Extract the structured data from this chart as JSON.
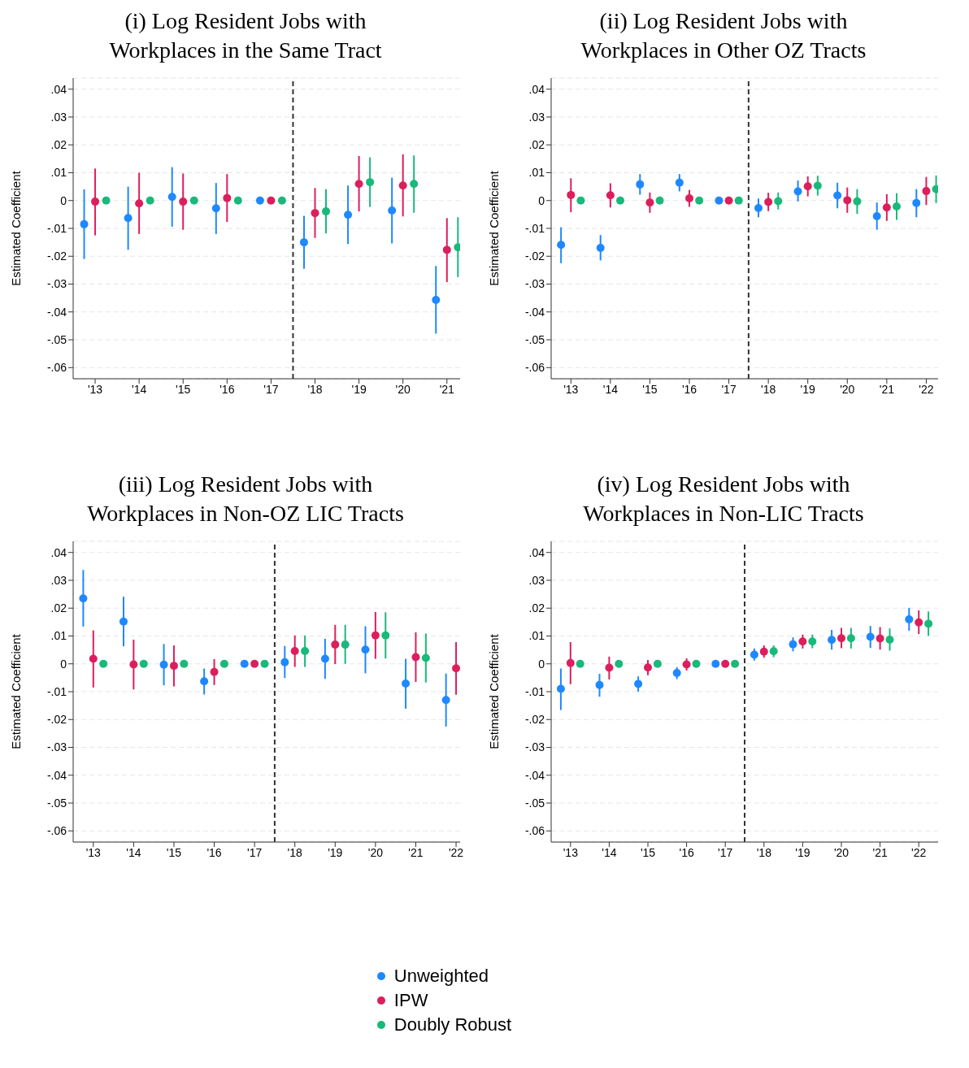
{
  "chart_data": [
    {
      "type": "scatter",
      "title": "(i) Log Resident Jobs with\nWorkplaces in the Same Tract",
      "ylabel": "Estimated Coefficient",
      "marker": "circle",
      "grid": "y",
      "legend": "bottom",
      "xlim": [
        2012.5,
        2021.3
      ],
      "xticks": [
        {
          "value": 2013,
          "label": "'13"
        },
        {
          "value": 2014,
          "label": "'14"
        },
        {
          "value": 2015,
          "label": "'15"
        },
        {
          "value": 2016,
          "label": "'16"
        },
        {
          "value": 2017,
          "label": "'17"
        },
        {
          "value": 2018,
          "label": "'18"
        },
        {
          "value": 2019,
          "label": "'19"
        },
        {
          "value": 2020,
          "label": "'20"
        },
        {
          "value": 2021,
          "label": "'21"
        }
      ],
      "ylim": [
        -0.064,
        0.044
      ],
      "yticks": [
        {
          "value": -0.06,
          "label": "-.06"
        },
        {
          "value": -0.05,
          "label": "-.05"
        },
        {
          "value": -0.04,
          "label": "-.04"
        },
        {
          "value": -0.03,
          "label": "-.03"
        },
        {
          "value": -0.02,
          "label": "-.02"
        },
        {
          "value": -0.01,
          "label": "-.01"
        },
        {
          "value": 0,
          "label": "0"
        },
        {
          "value": 0.01,
          "label": ".01"
        },
        {
          "value": 0.02,
          "label": ".02"
        },
        {
          "value": 0.03,
          "label": ".03"
        },
        {
          "value": 0.04,
          "label": ".04"
        }
      ],
      "ref_lines": [
        {
          "axis": "x",
          "value": 2017.5,
          "color": "#333333",
          "line_style": "dashed"
        }
      ],
      "series": [
        {
          "name": "Unweighted",
          "color": "#1e88ff",
          "x": [
            2012.75,
            2013.75,
            2014.75,
            2015.75,
            2016.75,
            2017.75,
            2018.75,
            2019.75,
            2020.75
          ],
          "values": [
            -0.0085,
            -0.0063,
            0.0013,
            -0.0028,
            0,
            -0.015,
            -0.0051,
            -0.0036,
            -0.0357
          ],
          "errors": [
            [
              -0.021,
              0.004
            ],
            [
              -0.0177,
              0.005
            ],
            [
              -0.0094,
              0.012
            ],
            [
              -0.012,
              0.0063
            ],
            null,
            [
              -0.0245,
              -0.0055
            ],
            [
              -0.0156,
              0.0054
            ],
            [
              -0.0154,
              0.0082
            ],
            [
              -0.0478,
              -0.0235
            ]
          ]
        },
        {
          "name": "IPW",
          "color": "#dc1f5c",
          "x": [
            2013,
            2014,
            2015,
            2016,
            2017,
            2018,
            2019,
            2020,
            2021
          ],
          "values": [
            -0.0004,
            -0.001,
            -0.0004,
            0.0009,
            0,
            -0.0045,
            0.006,
            0.0054,
            -0.0177
          ],
          "errors": [
            [
              -0.0125,
              0.0115
            ],
            [
              -0.012,
              0.01
            ],
            [
              -0.0105,
              0.0097
            ],
            [
              -0.0077,
              0.0095
            ],
            null,
            [
              -0.0134,
              0.0045
            ],
            [
              -0.0039,
              0.016
            ],
            [
              -0.0057,
              0.0166
            ],
            [
              -0.0293,
              -0.0063
            ]
          ]
        },
        {
          "name": "Doubly Robust",
          "color": "#19b97a",
          "x": [
            2013.25,
            2014.25,
            2015.25,
            2016.25,
            2017.25,
            2018.25,
            2019.25,
            2020.25,
            2021.25
          ],
          "values": [
            0,
            0,
            0,
            0,
            0,
            -0.0039,
            0.0066,
            0.006,
            -0.0168
          ],
          "errors": [
            null,
            null,
            null,
            null,
            null,
            [
              -0.0118,
              0.0041
            ],
            [
              -0.0023,
              0.0155
            ],
            [
              -0.0044,
              0.0162
            ],
            [
              -0.0275,
              -0.006
            ]
          ]
        }
      ]
    },
    {
      "type": "scatter",
      "title": "(ii) Log Resident Jobs with\nWorkplaces in Other OZ Tracts",
      "ylabel": "Estimated Coefficient",
      "marker": "circle",
      "grid": "y",
      "xlim": [
        2012.5,
        2022.3
      ],
      "xticks": [
        {
          "value": 2013,
          "label": "'13"
        },
        {
          "value": 2014,
          "label": "'14"
        },
        {
          "value": 2015,
          "label": "'15"
        },
        {
          "value": 2016,
          "label": "'16"
        },
        {
          "value": 2017,
          "label": "'17"
        },
        {
          "value": 2018,
          "label": "'18"
        },
        {
          "value": 2019,
          "label": "'19"
        },
        {
          "value": 2020,
          "label": "'20"
        },
        {
          "value": 2021,
          "label": "'21"
        },
        {
          "value": 2022,
          "label": "'22"
        }
      ],
      "ylim": [
        -0.064,
        0.044
      ],
      "yticks": [
        {
          "value": -0.06,
          "label": "-.06"
        },
        {
          "value": -0.05,
          "label": "-.05"
        },
        {
          "value": -0.04,
          "label": "-.04"
        },
        {
          "value": -0.03,
          "label": "-.03"
        },
        {
          "value": -0.02,
          "label": "-.02"
        },
        {
          "value": -0.01,
          "label": "-.01"
        },
        {
          "value": 0,
          "label": "0"
        },
        {
          "value": 0.01,
          "label": ".01"
        },
        {
          "value": 0.02,
          "label": ".02"
        },
        {
          "value": 0.03,
          "label": ".03"
        },
        {
          "value": 0.04,
          "label": ".04"
        }
      ],
      "ref_lines": [
        {
          "axis": "x",
          "value": 2017.5,
          "color": "#333333",
          "line_style": "dashed"
        }
      ],
      "series": [
        {
          "color": "#1e88ff",
          "x": [
            2012.75,
            2013.75,
            2014.75,
            2015.75,
            2016.75,
            2017.75,
            2018.75,
            2019.75,
            2020.75,
            2021.75
          ],
          "values": [
            -0.0159,
            -0.017,
            0.0058,
            0.0064,
            0,
            -0.0027,
            0.0033,
            0.0018,
            -0.0056,
            -0.0009
          ],
          "errors": [
            [
              -0.0225,
              -0.0096
            ],
            [
              -0.0215,
              -0.0124
            ],
            [
              0.0021,
              0.0095
            ],
            [
              0.0033,
              0.0095
            ],
            null,
            [
              -0.006,
              0.0007
            ],
            [
              -0.0003,
              0.0072
            ],
            [
              -0.0028,
              0.0064
            ],
            [
              -0.0105,
              -0.0007
            ],
            [
              -0.006,
              0.0041
            ]
          ]
        },
        {
          "color": "#dc1f5c",
          "x": [
            2013,
            2014,
            2015,
            2016,
            2017,
            2018,
            2019,
            2020,
            2021,
            2022
          ],
          "values": [
            0.002,
            0.0019,
            -0.0007,
            0.0008,
            0,
            -0.0005,
            0.0051,
            0.0001,
            -0.0025,
            0.0034
          ],
          "errors": [
            [
              -0.0042,
              0.008
            ],
            [
              -0.0025,
              0.0062
            ],
            [
              -0.0044,
              0.0029
            ],
            [
              -0.0023,
              0.0038
            ],
            null,
            [
              -0.0038,
              0.0028
            ],
            [
              0.0015,
              0.0087
            ],
            [
              -0.0044,
              0.0047
            ],
            [
              -0.0073,
              0.0023
            ],
            [
              -0.0016,
              0.0085
            ]
          ]
        },
        {
          "color": "#19b97a",
          "x": [
            2013.25,
            2014.25,
            2015.25,
            2016.25,
            2017.25,
            2018.25,
            2019.25,
            2020.25,
            2021.25,
            2022.25
          ],
          "values": [
            0,
            0,
            0,
            0,
            0,
            -0.0002,
            0.0053,
            -0.0003,
            -0.0021,
            0.0041
          ],
          "errors": [
            null,
            null,
            null,
            null,
            null,
            [
              -0.0032,
              0.0029
            ],
            [
              0.0018,
              0.0089
            ],
            [
              -0.0048,
              0.0041
            ],
            [
              -0.0069,
              0.0026
            ],
            [
              -0.0009,
              0.009
            ]
          ]
        }
      ]
    },
    {
      "type": "scatter",
      "title": "(iii) Log Resident Jobs with\nWorkplaces in Non-OZ LIC Tracts",
      "ylabel": "Estimated Coefficient",
      "marker": "circle",
      "grid": "y",
      "xlim": [
        2012.5,
        2022.1
      ],
      "xticks": [
        {
          "value": 2013,
          "label": "'13"
        },
        {
          "value": 2014,
          "label": "'14"
        },
        {
          "value": 2015,
          "label": "'15"
        },
        {
          "value": 2016,
          "label": "'16"
        },
        {
          "value": 2017,
          "label": "'17"
        },
        {
          "value": 2018,
          "label": "'18"
        },
        {
          "value": 2019,
          "label": "'19"
        },
        {
          "value": 2020,
          "label": "'20"
        },
        {
          "value": 2021,
          "label": "'21"
        },
        {
          "value": 2022,
          "label": "'22"
        }
      ],
      "ylim": [
        -0.064,
        0.044
      ],
      "yticks": [
        {
          "value": -0.06,
          "label": "-.06"
        },
        {
          "value": -0.05,
          "label": "-.05"
        },
        {
          "value": -0.04,
          "label": "-.04"
        },
        {
          "value": -0.03,
          "label": "-.03"
        },
        {
          "value": -0.02,
          "label": "-.02"
        },
        {
          "value": -0.01,
          "label": "-.01"
        },
        {
          "value": 0,
          "label": "0"
        },
        {
          "value": 0.01,
          "label": ".01"
        },
        {
          "value": 0.02,
          "label": ".02"
        },
        {
          "value": 0.03,
          "label": ".03"
        },
        {
          "value": 0.04,
          "label": ".04"
        }
      ],
      "ref_lines": [
        {
          "axis": "x",
          "value": 2017.5,
          "color": "#333333",
          "line_style": "dashed"
        }
      ],
      "series": [
        {
          "color": "#1e88ff",
          "x": [
            2012.75,
            2013.75,
            2014.75,
            2015.75,
            2016.75,
            2017.75,
            2018.75,
            2019.75,
            2020.75,
            2021.75
          ],
          "values": [
            0.0235,
            0.0152,
            -0.0003,
            -0.0063,
            0,
            0.0006,
            0.0018,
            0.0051,
            -0.0071,
            -0.013
          ],
          "errors": [
            [
              0.0134,
              0.0337
            ],
            [
              0.0063,
              0.0241
            ],
            [
              -0.0077,
              0.0071
            ],
            [
              -0.011,
              -0.0017
            ],
            null,
            [
              -0.0051,
              0.0064
            ],
            [
              -0.0054,
              0.009
            ],
            [
              -0.0034,
              0.0135
            ],
            [
              -0.0161,
              0.0018
            ],
            [
              -0.0225,
              -0.0035
            ]
          ]
        },
        {
          "color": "#dc1f5c",
          "x": [
            2013,
            2014,
            2015,
            2016,
            2017,
            2018,
            2019,
            2020,
            2021,
            2022
          ],
          "values": [
            0.0018,
            -0.0002,
            -0.0007,
            -0.0029,
            0,
            0.0046,
            0.0069,
            0.0102,
            0.0024,
            -0.0016
          ],
          "errors": [
            [
              -0.0085,
              0.012
            ],
            [
              -0.0092,
              0.0087
            ],
            [
              -0.0081,
              0.0066
            ],
            [
              -0.0076,
              0.0017
            ],
            null,
            [
              -0.0011,
              0.0102
            ],
            [
              -0.0001,
              0.014
            ],
            [
              0.0018,
              0.0186
            ],
            [
              -0.0065,
              0.0113
            ],
            [
              -0.0111,
              0.0078
            ]
          ]
        },
        {
          "color": "#19b97a",
          "x": [
            2013.25,
            2014.25,
            2015.25,
            2016.25,
            2017.25,
            2018.25,
            2019.25,
            2020.25,
            2021.25
          ],
          "values": [
            0,
            0,
            0,
            0,
            0,
            0.0046,
            0.0069,
            0.0102,
            0.0021
          ],
          "errors": [
            null,
            null,
            null,
            null,
            null,
            [
              -0.0011,
              0.0102
            ],
            [
              0,
              0.014
            ],
            [
              0.0019,
              0.0185
            ],
            [
              -0.0067,
              0.0109
            ]
          ]
        }
      ]
    },
    {
      "type": "scatter",
      "title": "(iv) Log Resident Jobs with\nWorkplaces in Non-LIC Tracts",
      "ylabel": "Estimated Coefficient",
      "marker": "circle",
      "grid": "y",
      "xlim": [
        2012.5,
        2022.5
      ],
      "xticks": [
        {
          "value": 2013,
          "label": "'13"
        },
        {
          "value": 2014,
          "label": "'14"
        },
        {
          "value": 2015,
          "label": "'15"
        },
        {
          "value": 2016,
          "label": "'16"
        },
        {
          "value": 2017,
          "label": "'17"
        },
        {
          "value": 2018,
          "label": "'18"
        },
        {
          "value": 2019,
          "label": "'19"
        },
        {
          "value": 2020,
          "label": "'20"
        },
        {
          "value": 2021,
          "label": "'21"
        },
        {
          "value": 2022,
          "label": "'22"
        }
      ],
      "ylim": [
        -0.064,
        0.044
      ],
      "yticks": [
        {
          "value": -0.06,
          "label": "-.06"
        },
        {
          "value": -0.05,
          "label": "-.05"
        },
        {
          "value": -0.04,
          "label": "-.04"
        },
        {
          "value": -0.03,
          "label": "-.03"
        },
        {
          "value": -0.02,
          "label": "-.02"
        },
        {
          "value": -0.01,
          "label": "-.01"
        },
        {
          "value": 0,
          "label": "0"
        },
        {
          "value": 0.01,
          "label": ".01"
        },
        {
          "value": 0.02,
          "label": ".02"
        },
        {
          "value": 0.03,
          "label": ".03"
        },
        {
          "value": 0.04,
          "label": ".04"
        }
      ],
      "ref_lines": [
        {
          "axis": "x",
          "value": 2017.5,
          "color": "#333333",
          "line_style": "dashed"
        }
      ],
      "series": [
        {
          "color": "#1e88ff",
          "x": [
            2012.75,
            2013.75,
            2014.75,
            2015.75,
            2016.75,
            2017.75,
            2018.75,
            2019.75,
            2020.75,
            2021.75
          ],
          "values": [
            -0.009,
            -0.0076,
            -0.0072,
            -0.0033,
            0,
            0.0033,
            0.007,
            0.0086,
            0.0097,
            0.016
          ],
          "errors": [
            [
              -0.0166,
              -0.0017
            ],
            [
              -0.0118,
              -0.0036
            ],
            [
              -0.01,
              -0.0045
            ],
            [
              -0.0055,
              -0.0012
            ],
            null,
            [
              0.0012,
              0.0055
            ],
            [
              0.0045,
              0.0095
            ],
            [
              0.0051,
              0.0122
            ],
            [
              0.0057,
              0.0136
            ],
            [
              0.0119,
              0.0201
            ]
          ]
        },
        {
          "color": "#dc1f5c",
          "x": [
            2013,
            2014,
            2015,
            2016,
            2017,
            2018,
            2019,
            2020,
            2021,
            2022
          ],
          "values": [
            0.0003,
            -0.0014,
            -0.0013,
            -0.0002,
            0,
            0.0044,
            0.008,
            0.0092,
            0.0091,
            0.0149
          ],
          "errors": [
            [
              -0.0073,
              0.0078
            ],
            [
              -0.0056,
              0.0026
            ],
            [
              -0.0041,
              0.0014
            ],
            [
              -0.0024,
              0.002
            ],
            null,
            [
              0.0022,
              0.0066
            ],
            [
              0.0055,
              0.0105
            ],
            [
              0.0056,
              0.0129
            ],
            [
              0.0051,
              0.0132
            ],
            [
              0.0107,
              0.0192
            ]
          ]
        },
        {
          "color": "#19b97a",
          "x": [
            2013.25,
            2014.25,
            2015.25,
            2016.25,
            2017.25,
            2018.25,
            2019.25,
            2020.25,
            2021.25,
            2022.25
          ],
          "values": [
            0,
            0,
            0,
            0,
            0,
            0.0045,
            0.008,
            0.0092,
            0.0087,
            0.0144
          ],
          "errors": [
            null,
            null,
            null,
            null,
            null,
            [
              0.0024,
              0.0066
            ],
            [
              0.0056,
              0.0105
            ],
            [
              0.0055,
              0.0129
            ],
            [
              0.0047,
              0.0127
            ],
            [
              0.0101,
              0.0188
            ]
          ]
        }
      ]
    }
  ]
}
